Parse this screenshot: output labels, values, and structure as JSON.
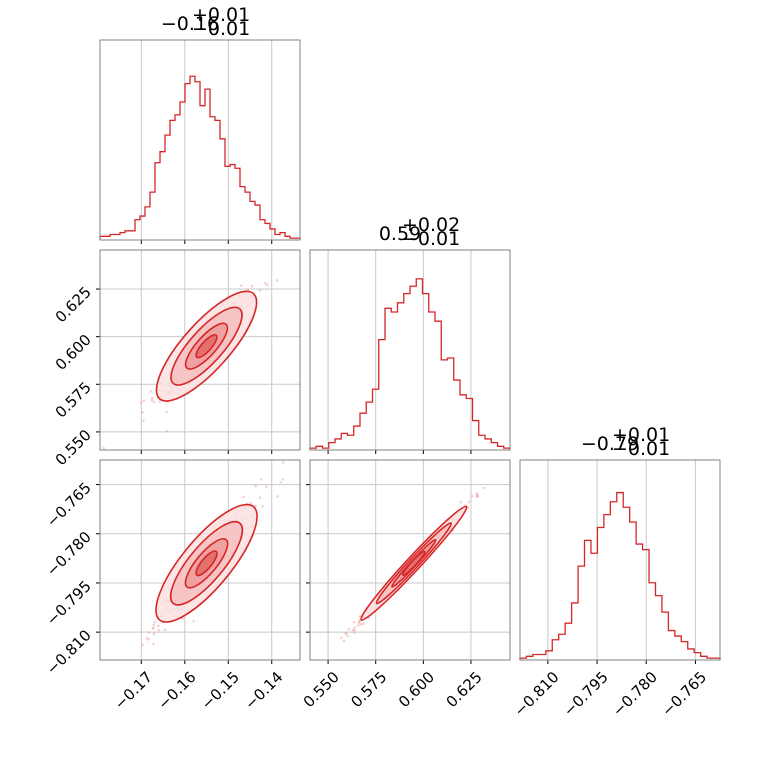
{
  "chart_data": {
    "type": "corner",
    "line_color": "#d62728",
    "scatter_color": "#f4a6a6",
    "parameters": [
      {
        "title_main": "−0.16",
        "title_sup": "+0.01",
        "title_sub": "−0.01",
        "range": [
          -0.1795,
          -0.1335
        ],
        "ticks": [
          -0.17,
          -0.16,
          -0.15,
          -0.14
        ],
        "tick_labels": [
          "−0.17",
          "−0.16",
          "−0.15",
          "−0.14"
        ],
        "hist_counts": [
          0.02,
          0.02,
          0.03,
          0.03,
          0.04,
          0.05,
          0.05,
          0.11,
          0.13,
          0.18,
          0.26,
          0.42,
          0.48,
          0.57,
          0.65,
          0.68,
          0.75,
          0.85,
          0.89,
          0.86,
          0.73,
          0.82,
          0.67,
          0.65,
          0.55,
          0.4,
          0.41,
          0.39,
          0.29,
          0.26,
          0.21,
          0.19,
          0.11,
          0.09,
          0.06,
          0.03,
          0.04,
          0.02,
          0.01,
          0.01
        ]
      },
      {
        "title_main": "0.59",
        "title_sup": "+0.02",
        "title_sub": "−0.01",
        "range": [
          0.5405,
          0.6455
        ],
        "ticks": [
          0.55,
          0.575,
          0.6,
          0.625
        ],
        "tick_labels": [
          "0.550",
          "0.575",
          "0.600",
          "0.625"
        ],
        "hist_counts": [
          0.01,
          0.02,
          0.01,
          0.04,
          0.06,
          0.09,
          0.08,
          0.13,
          0.2,
          0.26,
          0.33,
          0.6,
          0.77,
          0.75,
          0.8,
          0.85,
          0.89,
          0.93,
          0.85,
          0.75,
          0.7,
          0.49,
          0.5,
          0.38,
          0.3,
          0.28,
          0.16,
          0.08,
          0.06,
          0.04,
          0.02,
          0.01
        ]
      },
      {
        "title_main": "−0.79",
        "title_sup": "+0.01",
        "title_sub": "−0.01",
        "range": [
          -0.8185,
          -0.7575
        ],
        "ticks": [
          -0.81,
          -0.795,
          -0.78,
          -0.765
        ],
        "tick_labels": [
          "−0.810",
          "−0.795",
          "−0.780",
          "−0.765"
        ],
        "hist_counts": [
          0.01,
          0.02,
          0.03,
          0.03,
          0.05,
          0.11,
          0.14,
          0.2,
          0.31,
          0.51,
          0.65,
          0.58,
          0.72,
          0.79,
          0.86,
          0.91,
          0.83,
          0.75,
          0.63,
          0.6,
          0.42,
          0.35,
          0.26,
          0.16,
          0.13,
          0.1,
          0.06,
          0.04,
          0.02,
          0.01,
          0.01
        ]
      }
    ],
    "pair_correlations": [
      {
        "x_param": 0,
        "y_param": 1,
        "slope": 1.35
      },
      {
        "x_param": 0,
        "y_param": 2,
        "slope": 1.55
      },
      {
        "x_param": 1,
        "y_param": 2,
        "slope": 1.07
      }
    ],
    "center": [
      -0.155,
      0.595,
      -0.789
    ],
    "grid": true
  }
}
